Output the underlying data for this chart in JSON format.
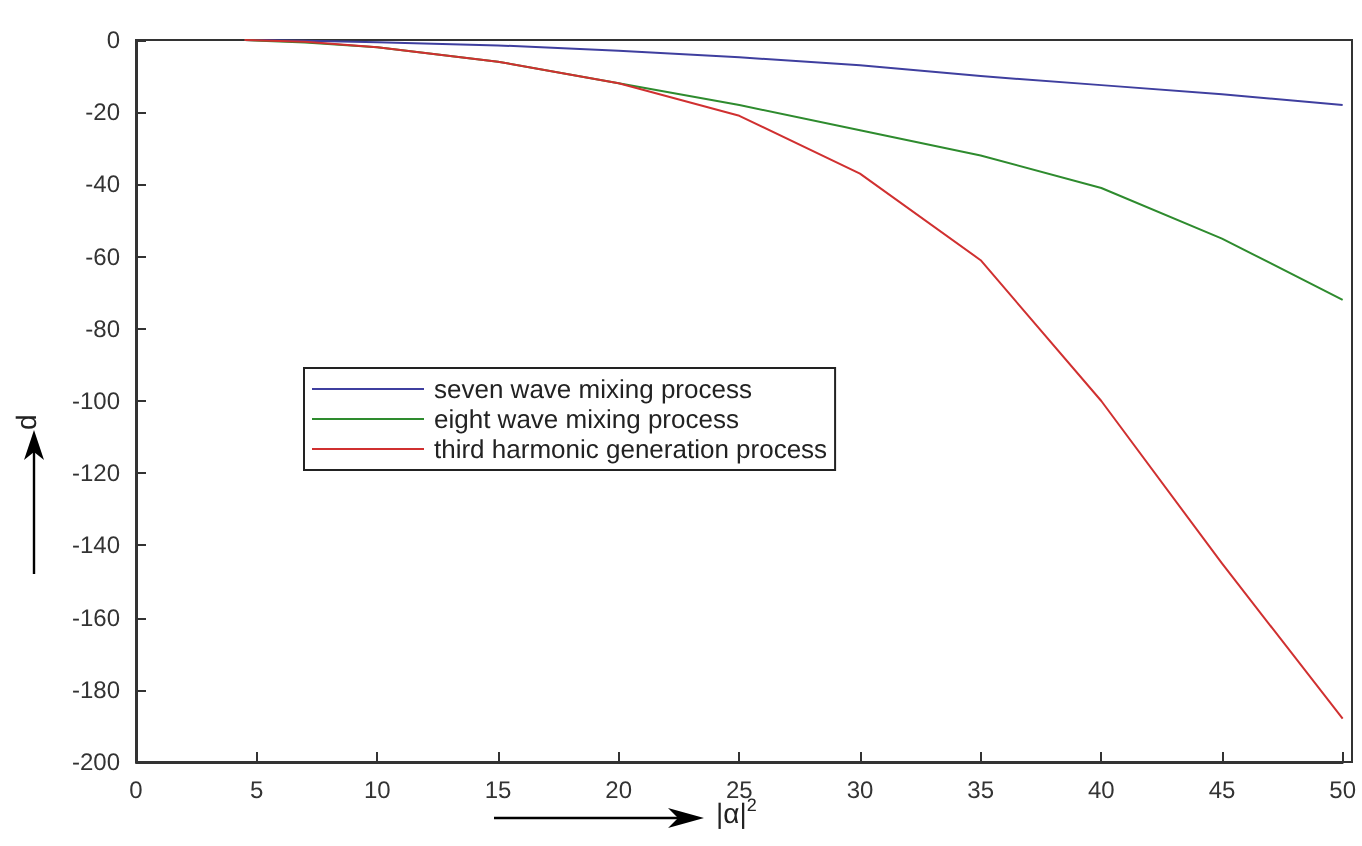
{
  "chart_data": {
    "type": "line",
    "xlabel": "|α|$^{2}$",
    "ylabel": "d",
    "xlim": [
      0,
      50
    ],
    "xticks": [
      0,
      5,
      10,
      15,
      20,
      25,
      30,
      35,
      40,
      45,
      50
    ],
    "ylim": [
      -200,
      0
    ],
    "yticks": [
      -200,
      -180,
      -160,
      -140,
      -120,
      -100,
      -80,
      -60,
      -40,
      -20,
      0
    ],
    "grid": false,
    "legend": "left",
    "marker": "none",
    "line_style": "solid",
    "x": [
      4.5,
      7,
      10,
      15,
      20,
      25,
      30,
      35,
      40,
      45,
      50
    ],
    "series": [
      {
        "name": "seven wave mixing process",
        "color": "#3f3f9f",
        "values": [
          0,
          -0.2,
          -0.6,
          -1.5,
          -3,
          -4.8,
          -7,
          -10,
          -12.5,
          -15,
          -18
        ]
      },
      {
        "name": "eight wave mixing process",
        "color": "#2e8b2e",
        "values": [
          0,
          -0.7,
          -2,
          -6,
          -12,
          -18,
          -25,
          -32,
          -41,
          -55,
          -72
        ]
      },
      {
        "name": "third harmonic generation process",
        "color": "#d03030",
        "values": [
          0,
          -0.5,
          -2,
          -6,
          -12,
          -21,
          -37,
          -61,
          -100,
          -145,
          -188
        ]
      }
    ]
  }
}
